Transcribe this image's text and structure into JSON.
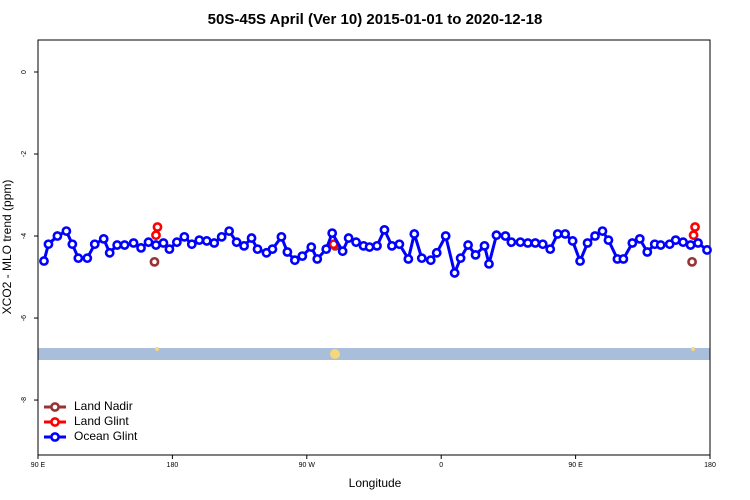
{
  "chart_data": {
    "type": "line",
    "title": "50S-45S April (Ver 10)   2015-01-01 to 2020-12-18",
    "xlabel": "Longitude",
    "ylabel": "XCO2 - MLO trend (ppm)",
    "xlim": [
      90,
      540
    ],
    "ylim": [
      -9.34,
      0.78
    ],
    "xticks": [
      {
        "value": 90,
        "label": "90 E"
      },
      180,
      {
        "value": 270,
        "label": "90 W"
      },
      {
        "value": 360,
        "label": "0"
      },
      {
        "value": 450,
        "label": "90 E"
      },
      {
        "value": 540,
        "label": "180"
      }
    ],
    "yticks": [
      0,
      -2,
      -4,
      -6,
      -8
    ],
    "legend": "bottom-left",
    "series": [
      {
        "name": "Land Nadir",
        "color": "#993333",
        "x": [
          168,
          null,
          289,
          null,
          528
        ],
        "values": [
          -4.63,
          null,
          -4.24,
          null,
          -4.63
        ]
      },
      {
        "name": "Land Glint",
        "color": "#ff0000",
        "x": [
          169,
          170,
          null,
          288,
          null,
          529,
          530
        ],
        "values": [
          -3.98,
          -3.78,
          null,
          -4.2,
          null,
          -3.98,
          -3.78
        ]
      },
      {
        "name": "Ocean Glint",
        "color": "#0000ff",
        "x": [
          94,
          97,
          103,
          109,
          113,
          117,
          123,
          128,
          134,
          138,
          143,
          148,
          154,
          159,
          164,
          169,
          174,
          178,
          183,
          188,
          193,
          198,
          203,
          208,
          213,
          218,
          223,
          228,
          233,
          237,
          243,
          247,
          253,
          257,
          262,
          267,
          273,
          277,
          283,
          287,
          294,
          298,
          303,
          308,
          312,
          317,
          322,
          327,
          332,
          338,
          342,
          347,
          353,
          357,
          363,
          369,
          373,
          378,
          383,
          389,
          392,
          397,
          403,
          407,
          413,
          418,
          423,
          428,
          433,
          438,
          443,
          448,
          453,
          458,
          463,
          468,
          472,
          478,
          482,
          488,
          493,
          498,
          503,
          507,
          513,
          517,
          522,
          527,
          532,
          538
        ],
        "values": [
          -4.61,
          -4.2,
          -4.0,
          -3.88,
          -4.2,
          -4.54,
          -4.54,
          -4.2,
          -4.07,
          -4.41,
          -4.22,
          -4.22,
          -4.17,
          -4.29,
          -4.15,
          -4.22,
          -4.17,
          -4.32,
          -4.15,
          -4.02,
          -4.2,
          -4.1,
          -4.12,
          -4.17,
          -4.02,
          -3.88,
          -4.15,
          -4.24,
          -4.05,
          -4.32,
          -4.41,
          -4.32,
          -4.02,
          -4.39,
          -4.59,
          -4.49,
          -4.27,
          -4.56,
          -4.32,
          -3.93,
          -4.37,
          -4.05,
          -4.15,
          -4.24,
          -4.27,
          -4.24,
          -3.85,
          -4.24,
          -4.2,
          -4.56,
          -3.95,
          -4.54,
          -4.59,
          -4.41,
          -4.0,
          -4.9,
          -4.54,
          -4.22,
          -4.46,
          -4.24,
          -4.68,
          -3.98,
          -4.0,
          -4.15,
          -4.15,
          -4.17,
          -4.17,
          -4.2,
          -4.32,
          -3.95,
          -3.95,
          -4.12,
          -4.61,
          -4.17,
          -4.0,
          -3.88,
          -4.1,
          -4.56,
          -4.56,
          -4.17,
          -4.07,
          -4.39,
          -4.2,
          -4.22,
          -4.2,
          -4.1,
          -4.15,
          -4.22,
          -4.17,
          -4.34
        ]
      }
    ]
  }
}
